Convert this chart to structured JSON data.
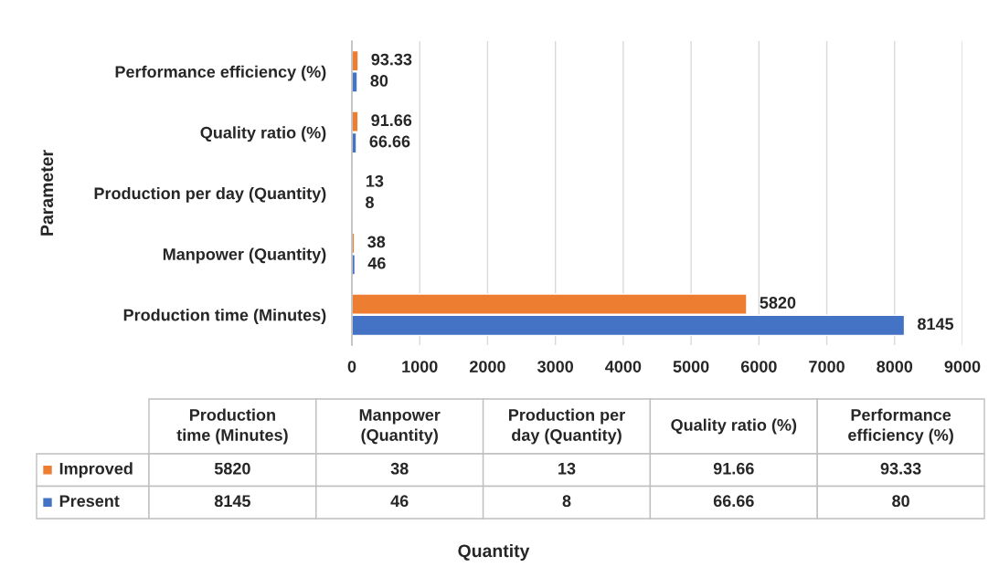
{
  "chart_data": {
    "type": "bar",
    "orientation": "horizontal",
    "ylabel": "Parameter",
    "annotations": [
      "5820",
      "38",
      "13",
      "91.66",
      "93.33",
      "8145",
      "46",
      "8",
      "66.66",
      "80",
      "Quantity"
    ],
    "categories": [
      "Performance efficiency (%)",
      "Quality ratio (%)",
      "Production per day (Quantity)",
      "Manpower (Quantity)",
      "Production time (Minutes)"
    ],
    "series": [
      {
        "name": "Improved",
        "color": "#ed7d31",
        "values": [
          93.33,
          91.66,
          13,
          38,
          5820
        ]
      },
      {
        "name": "Present",
        "color": "#4472c4",
        "values": [
          80,
          66.66,
          8,
          46,
          8145
        ]
      }
    ],
    "xlim": [
      0,
      9000
    ],
    "xticks": [
      0,
      1000,
      2000,
      3000,
      4000,
      5000,
      6000,
      7000,
      8000,
      9000
    ],
    "grid": "x",
    "data_labels": true,
    "legend": "bottom"
  }
}
